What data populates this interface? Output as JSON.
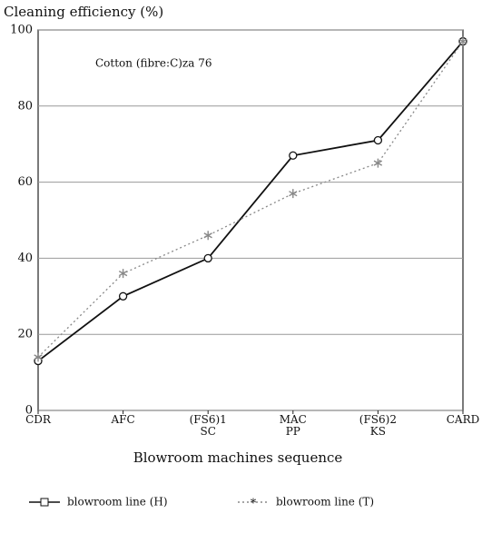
{
  "chart_data": {
    "type": "line",
    "title": "Cleaning efficiency (%)",
    "annotation": "Cotton (fibre:C)za 76",
    "xlabel": "Blowroom machines sequence",
    "categories": [
      "CDR",
      "AFC",
      "(FS6)1\nSC",
      "MAC\nPP",
      "(FS6)2\nKS",
      "CARD"
    ],
    "series": [
      {
        "name": "blowroom line (H)",
        "color": "#111111",
        "marker": "circle",
        "dash": "solid",
        "values": [
          13,
          30,
          40,
          67,
          71,
          97
        ]
      },
      {
        "name": "blowroom line (T)",
        "color": "#888888",
        "marker": "asterisk",
        "dash": "dotted",
        "values": [
          14,
          36,
          46,
          57,
          65,
          97
        ]
      }
    ],
    "ylim": [
      0,
      100
    ],
    "yticks": [
      0,
      20,
      40,
      60,
      80,
      100
    ],
    "grid": true
  }
}
